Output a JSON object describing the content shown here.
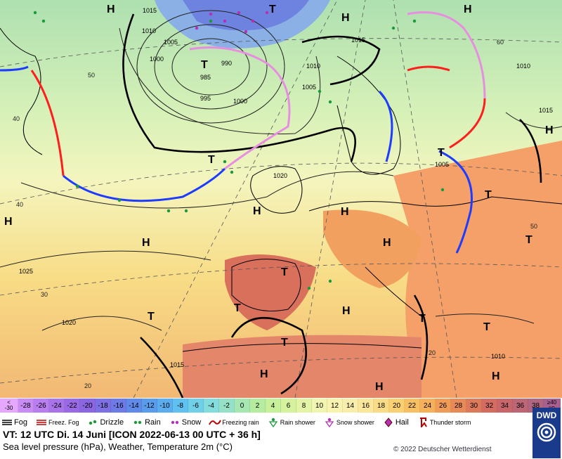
{
  "map": {
    "pressure_centers": [
      {
        "type": "H",
        "pos": "north-atlantic-top"
      },
      {
        "type": "T",
        "pos": "iceland"
      },
      {
        "type": "H",
        "pos": "greenland-sea"
      },
      {
        "type": "T",
        "pos": "norway-sea"
      },
      {
        "type": "H",
        "pos": "barents-sea"
      },
      {
        "type": "T",
        "pos": "atlantic-west"
      },
      {
        "type": "H",
        "pos": "atlantic-mid"
      },
      {
        "type": "T",
        "pos": "atlantic-southwest"
      },
      {
        "type": "H",
        "pos": "baltic"
      },
      {
        "type": "T",
        "pos": "russia"
      },
      {
        "type": "H",
        "pos": "ural"
      }
    ],
    "isobar_labels": [
      "1015",
      "1010",
      "1005",
      "1000",
      "990",
      "985",
      "995",
      "1000",
      "1005",
      "1010",
      "1015",
      "1020",
      "1025",
      "1020",
      "1015",
      "1010",
      "1005",
      "1010",
      "1015"
    ],
    "lat_labels": [
      "50",
      "40",
      "30",
      "20",
      "60",
      "50",
      "40",
      "20"
    ]
  },
  "scale": {
    "first": [
      "<",
      "-30"
    ],
    "values": [
      "-30",
      "-28",
      "-26",
      "-24",
      "-22",
      "-20",
      "-18",
      "-16",
      "-14",
      "-12",
      "-10",
      "-8",
      "-6",
      "-4",
      "-2",
      "0",
      "2",
      "4",
      "6",
      "8",
      "10",
      "12",
      "14",
      "16",
      "18",
      "20",
      "22",
      "24",
      "26",
      "28",
      "30",
      "32",
      "34",
      "36",
      "38"
    ],
    "last": [
      "≥40",
      "°C"
    ]
  },
  "legend": [
    {
      "label": "Fog",
      "icon": "fog-icon"
    },
    {
      "label": "Freez. Fog",
      "icon": "freezing-fog-icon"
    },
    {
      "label": "Drizzle",
      "icon": "drizzle-icon"
    },
    {
      "label": "Rain",
      "icon": "rain-icon"
    },
    {
      "label": "Snow",
      "icon": "snow-icon"
    },
    {
      "label": "Freezing rain",
      "icon": "freezing-rain-icon"
    },
    {
      "label": "Rain shower",
      "icon": "rain-shower-icon"
    },
    {
      "label": "Snow shower",
      "icon": "snow-shower-icon"
    },
    {
      "label": "Hail",
      "icon": "hail-icon"
    },
    {
      "label": "Thunder storm",
      "icon": "thunderstorm-icon"
    }
  ],
  "info": {
    "line1": "VT: 12 UTC Di.  14 Juni [ICON 2022-06-13  00 UTC + 36 h]",
    "line2": "Sea level pressure (hPa), Weather, Temperature 2m (°C)",
    "copyright": "© 2022 Deutscher Wetterdienst",
    "logo": "DWD"
  },
  "colors": {
    "scale": [
      "#d9a6ff",
      "#c98cf5",
      "#b97ef0",
      "#a974ea",
      "#9a6ae5",
      "#8a66e2",
      "#7c70e4",
      "#6e7ae6",
      "#5f8ae9",
      "#5a9cec",
      "#5aaef0",
      "#60c0f0",
      "#70d0e8",
      "#84dcdc",
      "#96e0c8",
      "#a6e6b0",
      "#b6eca0",
      "#c6f09a",
      "#d6f29e",
      "#e4f4a6",
      "#f0f6b2",
      "#f8f4b0",
      "#faeeac",
      "#fbe69a",
      "#fbdc86",
      "#fad070",
      "#f8c062",
      "#f6b05a",
      "#f09c56",
      "#e88a58",
      "#de7a5c",
      "#d46c62",
      "#c8666c",
      "#bc6676",
      "#b06680"
    ],
    "front_cold": "#1e3cff",
    "front_warm": "#ff1e1e",
    "front_occluded": "#e88ee0"
  }
}
